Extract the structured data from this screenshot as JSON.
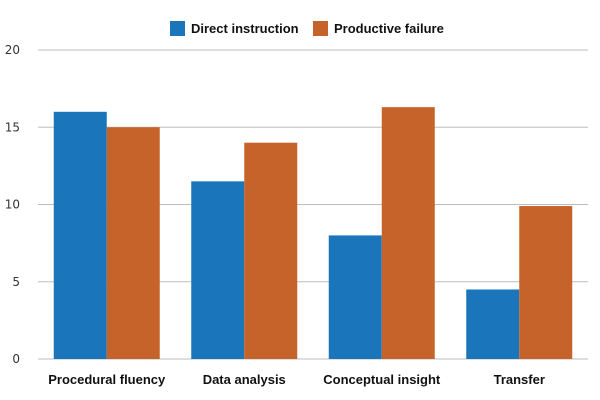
{
  "chart_data": {
    "type": "bar",
    "categories": [
      "Procedural fluency",
      "Data analysis",
      "Conceptual insight",
      "Transfer"
    ],
    "series": [
      {
        "name": "Direct instruction",
        "values": [
          16,
          11.5,
          8,
          4.5
        ],
        "color": "#1a75bb"
      },
      {
        "name": "Productive failure",
        "values": [
          15,
          14,
          16.3,
          9.9
        ],
        "color": "#c5632a"
      }
    ],
    "ylim": [
      0,
      20
    ],
    "yticks": [
      0,
      5,
      10,
      15,
      20
    ],
    "grid": true,
    "legend": "top-center"
  }
}
